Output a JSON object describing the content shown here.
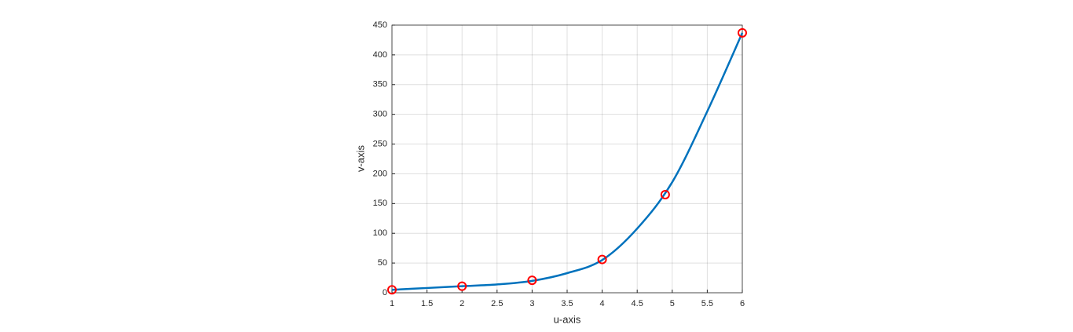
{
  "chart_data": {
    "type": "line",
    "xlabel": "u-axis",
    "ylabel": "v-axis",
    "series": [
      {
        "color": "#0072bd",
        "marker": "none",
        "x": [
          1,
          1.5,
          2,
          2.5,
          3,
          3.5,
          4,
          4.5,
          5,
          5.5,
          6
        ],
        "values": [
          5,
          8,
          11,
          14,
          20,
          33,
          55,
          108,
          186,
          305,
          437
        ]
      },
      {
        "color": "#ff0000",
        "marker": "o",
        "x": [
          1,
          2,
          3,
          4,
          4.9,
          6
        ],
        "values": [
          5,
          11,
          21,
          56,
          165,
          437
        ]
      }
    ],
    "xlim": [
      1,
      6
    ],
    "xticks": [
      1,
      1.5,
      2,
      2.5,
      3,
      3.5,
      4,
      4.5,
      5,
      5.5,
      6
    ],
    "ylim": [
      0,
      450
    ],
    "yticks": [
      0,
      50,
      100,
      150,
      200,
      250,
      300,
      350,
      400,
      450
    ],
    "grid": true
  }
}
